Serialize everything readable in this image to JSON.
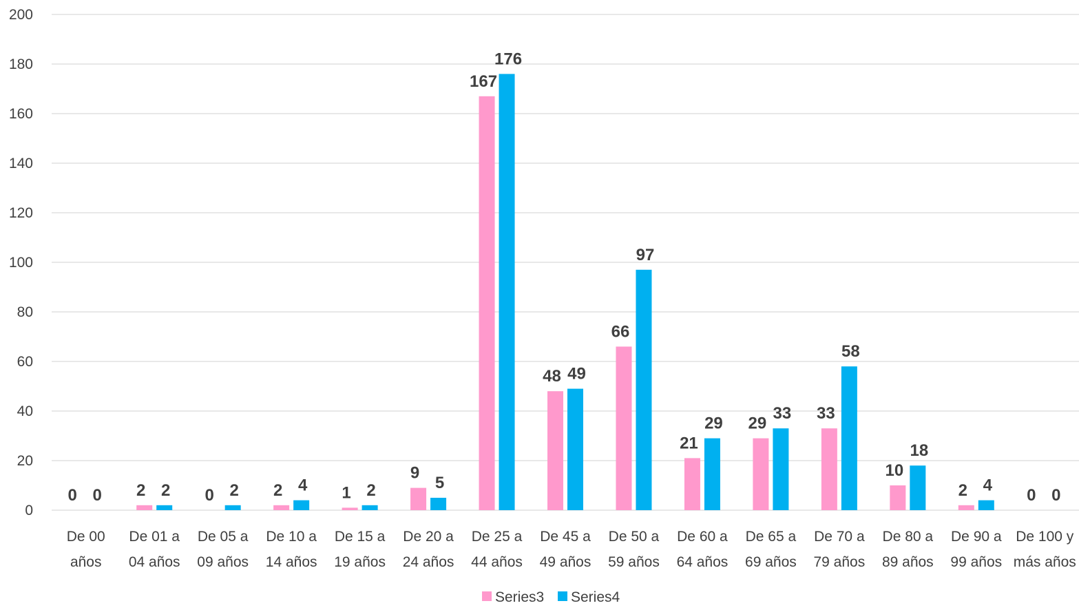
{
  "chart_data": {
    "type": "bar",
    "title": "",
    "xlabel": "",
    "ylabel": "",
    "ylim": [
      0,
      200
    ],
    "yticks": [
      "0",
      "20",
      "40",
      "60",
      "80",
      "100",
      "120",
      "140",
      "160",
      "180",
      "200"
    ],
    "grid": true,
    "legend_position": "bottom",
    "categories": [
      [
        "De 00",
        "años"
      ],
      [
        "De 01 a",
        "04 años"
      ],
      [
        "De 05 a",
        "09 años"
      ],
      [
        "De 10 a",
        "14 años"
      ],
      [
        "De 15 a",
        "19 años"
      ],
      [
        "De 20 a",
        "24 años"
      ],
      [
        "De 25 a",
        "44 años"
      ],
      [
        "De 45 a",
        "49 años"
      ],
      [
        "De 50 a",
        "59 años"
      ],
      [
        "De 60 a",
        "64 años"
      ],
      [
        "De 65 a",
        "69 años"
      ],
      [
        "De 70 a",
        "79 años"
      ],
      [
        "De 80 a",
        "89 años"
      ],
      [
        "De 90 a",
        "99 años"
      ],
      [
        "De 100 y",
        "más años"
      ]
    ],
    "series": [
      {
        "name": "Series3",
        "color": "#ff99cc",
        "values": [
          0,
          2,
          0,
          2,
          1,
          9,
          167,
          48,
          66,
          21,
          29,
          33,
          10,
          2,
          0
        ]
      },
      {
        "name": "Series4",
        "color": "#00b0f0",
        "values": [
          0,
          2,
          2,
          4,
          2,
          5,
          176,
          49,
          97,
          29,
          33,
          58,
          18,
          4,
          0
        ]
      }
    ],
    "data_labels": true
  },
  "colors": {
    "grid": "#d9d9d9",
    "text": "#404040"
  }
}
